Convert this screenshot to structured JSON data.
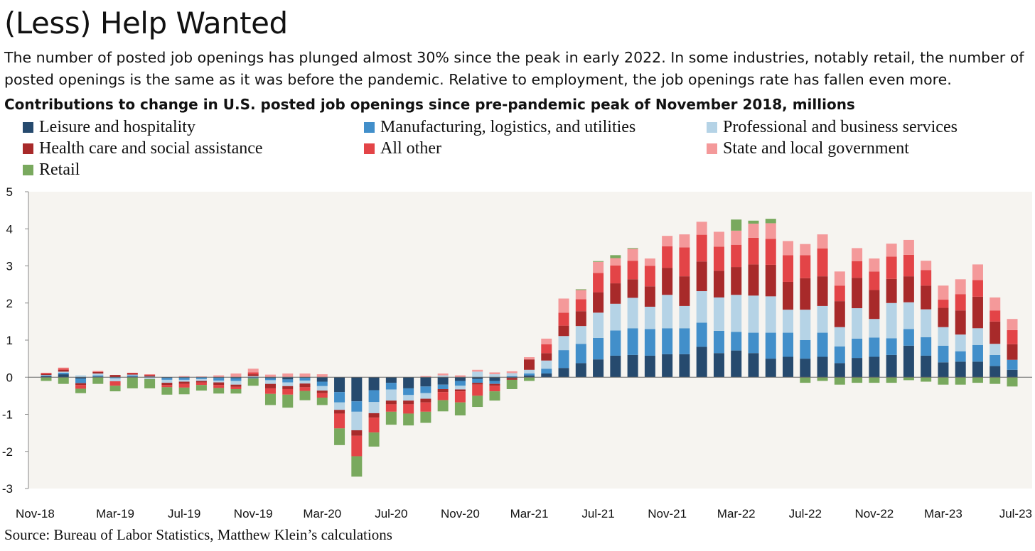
{
  "title": "(Less) Help Wanted",
  "subtitle": "The number of posted job openings has plunged almost 30% since the peak in early 2022. In some industries, notably retail, the number of posted openings is the same as it was before the pandemic. Relative to employment, the job openings rate has fallen even more.",
  "source": "Source: Bureau of Labor Statistics, Matthew Klein’s calculations",
  "colors": {
    "leisure": "#264a6e",
    "manufacturing": "#428fca",
    "professional": "#b5d3e6",
    "health": "#a82a2a",
    "other": "#e34447",
    "government": "#f4999a",
    "retail": "#79a95e",
    "plot_bg": "#f6f4f0"
  },
  "chart_data": {
    "type": "bar",
    "stacked": true,
    "title": "Contributions to change in U.S. posted job openings since pre-pandemic peak of November 2018, millions",
    "ylim": [
      -3,
      5
    ],
    "yticks": [
      5,
      4,
      3,
      2,
      1,
      0,
      -1,
      -2,
      -3
    ],
    "x_tick_labels": [
      "Nov-18",
      "Mar-19",
      "Jul-19",
      "Nov-19",
      "Mar-20",
      "Jul-20",
      "Nov-20",
      "Mar-21",
      "Jul-21",
      "Nov-21",
      "Mar-22",
      "Jul-22",
      "Nov-22",
      "Mar-23",
      "Jul-23"
    ],
    "categories": [
      "Nov-18",
      "Dec-18",
      "Jan-19",
      "Feb-19",
      "Mar-19",
      "Apr-19",
      "May-19",
      "Jun-19",
      "Jul-19",
      "Aug-19",
      "Sep-19",
      "Oct-19",
      "Nov-19",
      "Dec-19",
      "Jan-20",
      "Feb-20",
      "Mar-20",
      "Apr-20",
      "May-20",
      "Jun-20",
      "Jul-20",
      "Aug-20",
      "Sep-20",
      "Oct-20",
      "Nov-20",
      "Dec-20",
      "Jan-21",
      "Feb-21",
      "Mar-21",
      "Apr-21",
      "May-21",
      "Jun-21",
      "Jul-21",
      "Aug-21",
      "Sep-21",
      "Oct-21",
      "Nov-21",
      "Dec-21",
      "Jan-22",
      "Feb-22",
      "Mar-22",
      "Apr-22",
      "May-22",
      "Jun-22",
      "Jul-22",
      "Aug-22",
      "Sep-22",
      "Oct-22",
      "Nov-22",
      "Dec-22",
      "Jan-23",
      "Feb-23",
      "Mar-23",
      "Apr-23",
      "May-23",
      "Jun-23",
      "Jul-23"
    ],
    "legend": [
      {
        "key": "leisure",
        "name": "Leisure and hospitality"
      },
      {
        "key": "manufacturing",
        "name": "Manufacturing, logistics, and utilities"
      },
      {
        "key": "professional",
        "name": "Professional and business services"
      },
      {
        "key": "health",
        "name": "Health care and social assistance"
      },
      {
        "key": "other",
        "name": "All other"
      },
      {
        "key": "government",
        "name": "State and local government"
      },
      {
        "key": "retail",
        "name": "Retail"
      }
    ],
    "series": [
      {
        "key": "leisure",
        "name": "Leisure and hospitality",
        "values": [
          0.03,
          0.08,
          -0.04,
          0.02,
          0.0,
          0.02,
          0.0,
          -0.02,
          -0.02,
          0.0,
          -0.02,
          -0.03,
          0.0,
          -0.03,
          -0.06,
          -0.02,
          -0.12,
          -0.4,
          -0.65,
          -0.35,
          -0.15,
          -0.3,
          -0.25,
          -0.2,
          -0.1,
          -0.05,
          -0.1,
          -0.02,
          0.05,
          0.1,
          0.25,
          0.38,
          0.48,
          0.58,
          0.6,
          0.58,
          0.62,
          0.62,
          0.82,
          0.65,
          0.72,
          0.65,
          0.5,
          0.55,
          0.5,
          0.55,
          0.38,
          0.52,
          0.55,
          0.6,
          0.85,
          0.58,
          0.4,
          0.42,
          0.42,
          0.3,
          0.2
        ]
      },
      {
        "key": "manufacturing",
        "name": "Manufacturing, logistics, and utilities",
        "values": [
          0.02,
          0.04,
          -0.12,
          0.03,
          -0.03,
          0.03,
          0.02,
          -0.05,
          -0.05,
          -0.05,
          -0.07,
          -0.07,
          -0.03,
          -0.05,
          -0.08,
          -0.07,
          -0.12,
          -0.28,
          -0.28,
          -0.32,
          -0.18,
          -0.18,
          -0.18,
          -0.12,
          -0.13,
          -0.1,
          -0.08,
          0.03,
          0.05,
          0.13,
          0.48,
          0.52,
          0.58,
          0.68,
          0.72,
          0.72,
          0.7,
          0.7,
          0.65,
          0.6,
          0.5,
          0.55,
          0.7,
          0.65,
          0.5,
          0.65,
          0.45,
          0.52,
          0.52,
          0.45,
          0.45,
          0.5,
          0.45,
          0.28,
          0.45,
          0.3,
          0.27
        ]
      },
      {
        "key": "professional",
        "name": "Professional and business services",
        "values": [
          0.01,
          0.03,
          0.05,
          0.05,
          -0.08,
          0.02,
          -0.05,
          -0.08,
          -0.05,
          -0.05,
          -0.05,
          -0.1,
          0.03,
          -0.1,
          -0.1,
          -0.08,
          -0.12,
          -0.2,
          -0.5,
          -0.3,
          -0.3,
          -0.15,
          -0.15,
          0.05,
          -0.1,
          0.15,
          0.08,
          0.08,
          0.1,
          0.22,
          0.38,
          0.48,
          0.68,
          0.72,
          0.82,
          0.6,
          0.9,
          0.6,
          0.85,
          0.9,
          1.0,
          1.0,
          0.98,
          0.62,
          0.82,
          0.72,
          0.52,
          0.82,
          0.5,
          0.95,
          0.72,
          0.75,
          0.5,
          0.45,
          0.45,
          0.3,
          0.0
        ]
      },
      {
        "key": "health",
        "name": "Health care and social assistance",
        "values": [
          0.03,
          0.05,
          -0.05,
          0.04,
          0.06,
          0.03,
          0.03,
          -0.06,
          -0.06,
          -0.04,
          -0.07,
          -0.06,
          0.05,
          -0.12,
          -0.08,
          -0.1,
          -0.07,
          -0.1,
          -0.15,
          -0.12,
          -0.1,
          -0.1,
          -0.1,
          -0.08,
          -0.05,
          -0.05,
          -0.05,
          -0.05,
          0.28,
          0.2,
          0.28,
          0.4,
          0.55,
          0.55,
          0.5,
          0.55,
          0.73,
          0.8,
          0.8,
          0.72,
          0.75,
          0.84,
          0.85,
          0.75,
          0.85,
          0.8,
          0.7,
          0.82,
          0.78,
          0.65,
          0.7,
          0.64,
          0.52,
          0.65,
          0.85,
          0.6,
          0.42
        ]
      },
      {
        "key": "other",
        "name": "All other",
        "values": [
          0.02,
          0.04,
          -0.1,
          0.01,
          -0.12,
          0.02,
          0.02,
          -0.06,
          -0.1,
          -0.07,
          -0.08,
          -0.06,
          0.05,
          -0.15,
          -0.15,
          -0.1,
          -0.12,
          -0.4,
          -0.55,
          -0.4,
          -0.2,
          -0.25,
          -0.25,
          -0.22,
          -0.3,
          -0.3,
          -0.15,
          0.0,
          0.0,
          0.24,
          0.35,
          0.32,
          0.52,
          0.48,
          0.5,
          0.55,
          0.58,
          0.78,
          0.72,
          0.65,
          0.6,
          0.72,
          0.7,
          0.72,
          0.62,
          0.75,
          0.42,
          0.45,
          0.5,
          0.6,
          0.58,
          0.42,
          0.22,
          0.44,
          0.45,
          0.3,
          0.38
        ]
      },
      {
        "key": "government",
        "name": "State and local government",
        "values": [
          0.01,
          0.02,
          0.0,
          0.02,
          0.0,
          0.0,
          0.01,
          0.0,
          0.03,
          0.02,
          0.05,
          0.1,
          0.1,
          0.07,
          0.1,
          0.1,
          0.08,
          0.0,
          0.0,
          0.0,
          0.0,
          0.0,
          0.03,
          0.05,
          0.05,
          0.05,
          0.05,
          0.05,
          0.06,
          0.15,
          0.38,
          0.25,
          0.3,
          0.2,
          0.32,
          0.2,
          0.28,
          0.35,
          0.35,
          0.4,
          0.38,
          0.38,
          0.42,
          0.38,
          0.3,
          0.38,
          0.38,
          0.35,
          0.35,
          0.35,
          0.4,
          0.25,
          0.38,
          0.4,
          0.42,
          0.35,
          0.3
        ]
      },
      {
        "key": "retail",
        "name": "Retail",
        "values": [
          -0.1,
          -0.18,
          -0.12,
          -0.18,
          -0.15,
          -0.3,
          -0.25,
          -0.2,
          -0.18,
          -0.15,
          -0.15,
          -0.12,
          -0.2,
          -0.3,
          -0.35,
          -0.25,
          -0.2,
          -0.45,
          -0.55,
          -0.38,
          -0.35,
          -0.32,
          -0.3,
          -0.3,
          -0.35,
          -0.3,
          -0.25,
          -0.25,
          -0.1,
          0.0,
          0.0,
          0.02,
          0.02,
          0.08,
          0.02,
          0.0,
          0.0,
          0.0,
          0.0,
          0.0,
          0.3,
          0.08,
          0.12,
          0.0,
          -0.15,
          -0.1,
          -0.2,
          -0.15,
          -0.15,
          -0.15,
          -0.08,
          -0.12,
          -0.2,
          -0.2,
          -0.15,
          -0.18,
          -0.25
        ]
      }
    ]
  }
}
